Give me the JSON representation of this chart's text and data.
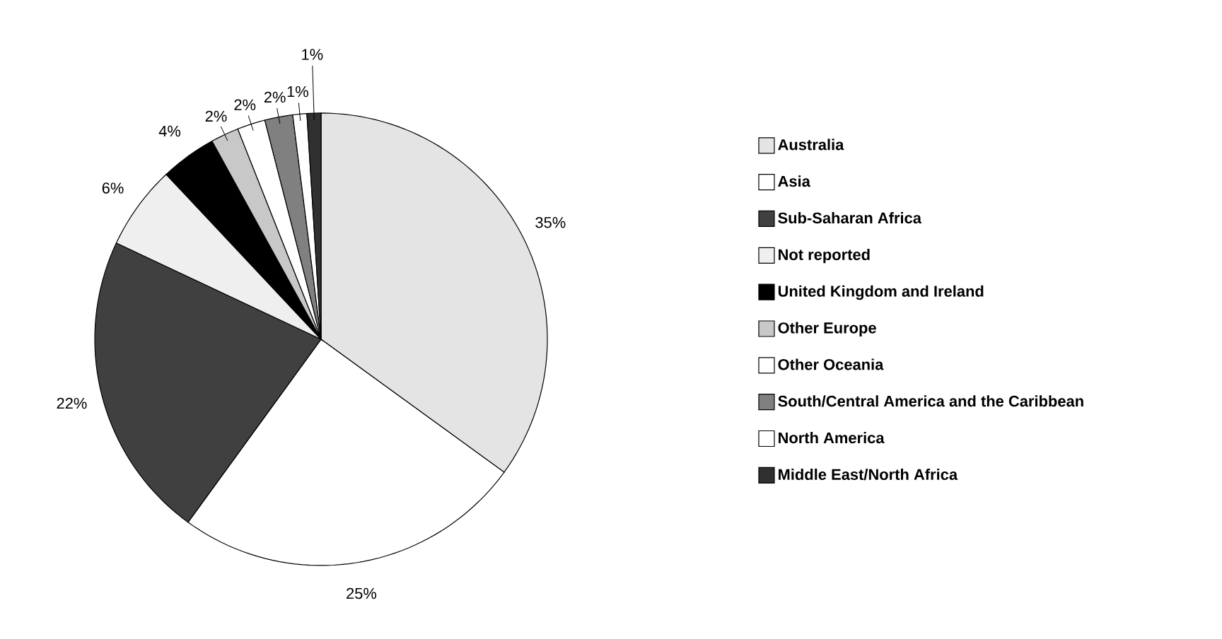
{
  "chart_data": {
    "type": "pie",
    "categories": [
      "Australia",
      "Asia",
      "Sub-Saharan Africa",
      "Not reported",
      "United Kingdom and Ireland",
      "Other Europe",
      "Other Oceania",
      "South/Central America and the Caribbean",
      "North America",
      "Middle East/North Africa"
    ],
    "values": [
      35,
      25,
      22,
      6,
      4,
      2,
      2,
      2,
      1,
      1
    ],
    "value_labels": [
      "35%",
      "25%",
      "22%",
      "6%",
      "4%",
      "2%",
      "2%",
      "2%",
      "1%",
      "1%"
    ],
    "colors": [
      "#e4e4e4",
      "#ffffff",
      "#404040",
      "#efefef",
      "#000000",
      "#c8c8c8",
      "#ffffff",
      "#808080",
      "#ffffff",
      "#303030"
    ],
    "legend": "right"
  }
}
